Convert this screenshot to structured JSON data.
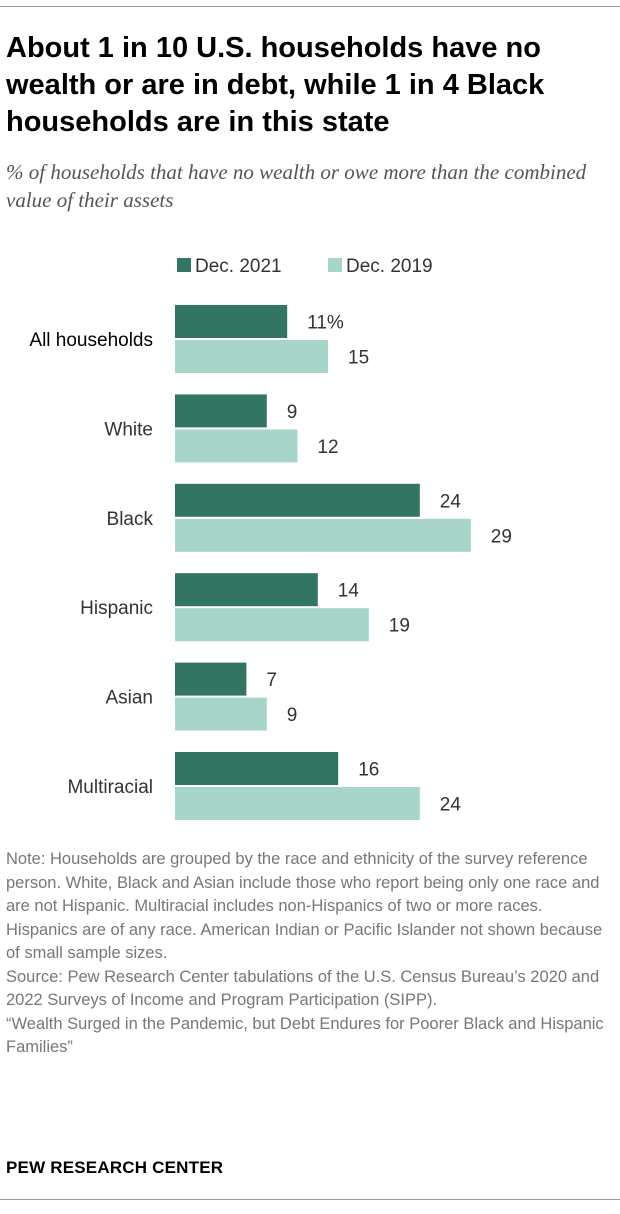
{
  "title": "About 1 in 10 U.S. households have no wealth or are in debt, while 1 in 4 Black households are in this state",
  "subtitle": "% of households that have no wealth or owe more than the combined value of their assets",
  "chart_data": {
    "type": "bar",
    "orientation": "horizontal",
    "categories": [
      "All households",
      "White",
      "Black",
      "Hispanic",
      "Asian",
      "Multiracial"
    ],
    "series": [
      {
        "name": "Dec. 2021",
        "color": "#337563",
        "values": [
          11,
          9,
          24,
          14,
          7,
          16
        ],
        "labels": [
          "11%",
          "9",
          "24",
          "14",
          "7",
          "16"
        ]
      },
      {
        "name": "Dec. 2019",
        "color": "#a7d5ca",
        "values": [
          15,
          12,
          29,
          19,
          9,
          24
        ],
        "labels": [
          "15",
          "12",
          "29",
          "19",
          "9",
          "24"
        ]
      }
    ],
    "xlim": [
      0,
      30
    ],
    "legend": "top",
    "grid": false
  },
  "notes": {
    "note": "Note: Households are grouped by the race and ethnicity of the survey reference person. White, Black and Asian include those who report being only one race and are not Hispanic. Multiracial includes non-Hispanics of two or more races. Hispanics are of any race. American Indian or Pacific Islander not shown because of small sample sizes.",
    "source": "Source: Pew Research Center tabulations of the U.S. Census Bureau’s 2020 and 2022 Surveys of Income and Program Participation (SIPP).",
    "report": "“Wealth Surged in the Pandemic, but Debt Endures for Poorer Black and Hispanic Families”"
  },
  "brand": "PEW RESEARCH CENTER"
}
